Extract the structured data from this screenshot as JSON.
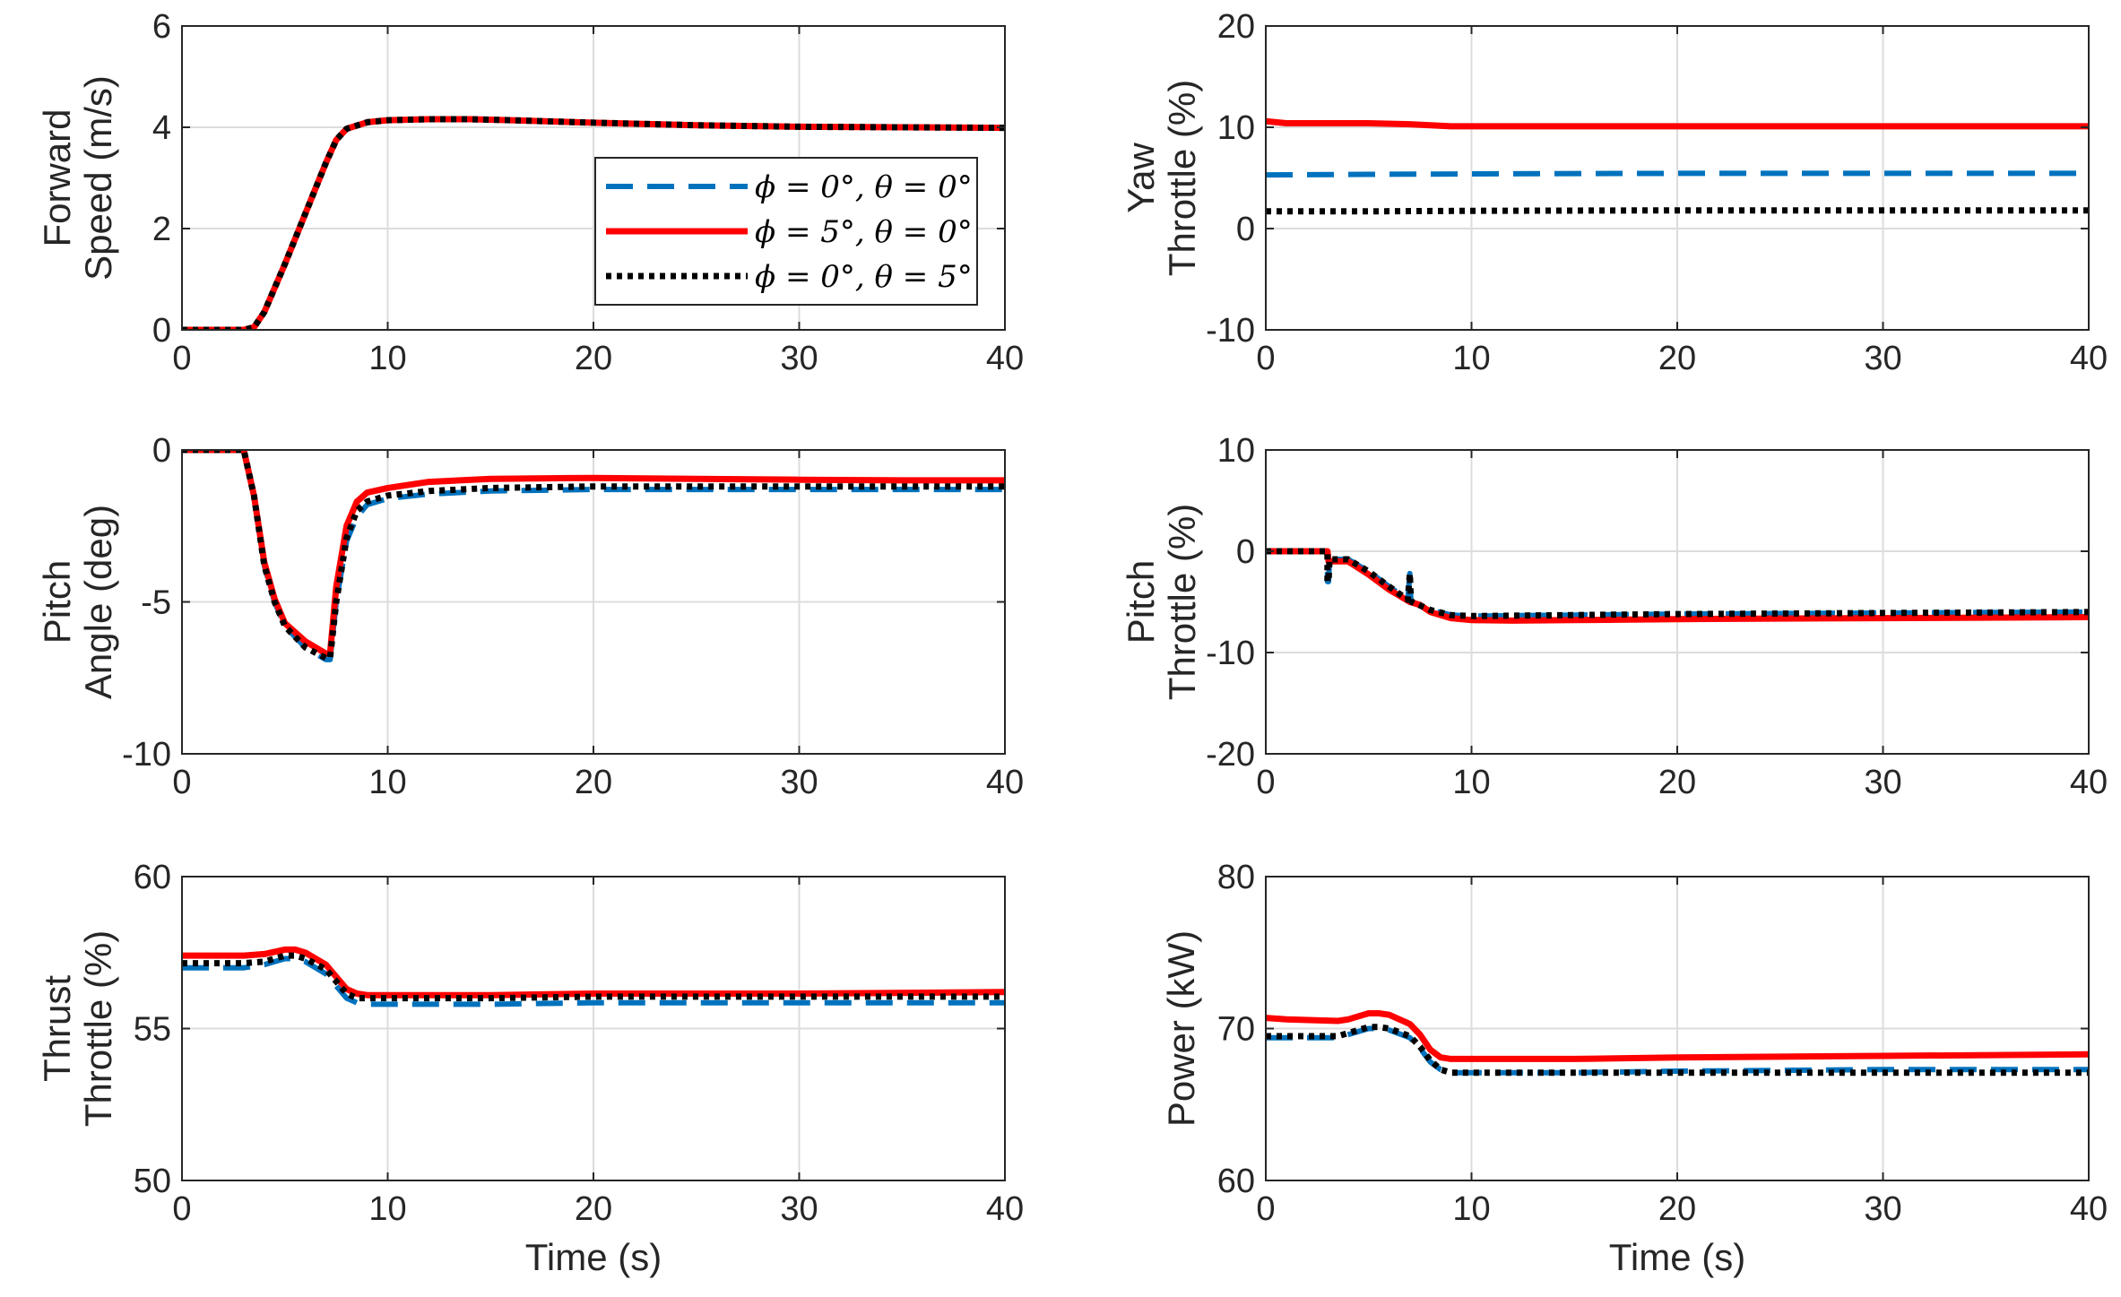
{
  "colors": {
    "series_a": "#0072BD",
    "series_b": "#FF0000",
    "series_c": "#000000",
    "grid": "#DCDCDC",
    "axis": "#262626"
  },
  "legend": {
    "entries": [
      "ϕ = 0°, θ = 0°",
      "ϕ = 5°, θ = 0°",
      "ϕ = 0°, θ = 5°"
    ]
  },
  "chart_data": [
    {
      "type": "line",
      "id": "forward-speed",
      "ylabel": [
        "Forward",
        "Speed (m/s)"
      ],
      "xlabel": "",
      "xlim": [
        0,
        40
      ],
      "ylim": [
        0,
        6
      ],
      "xticks": [
        0,
        10,
        20,
        30,
        40
      ],
      "yticks": [
        0,
        2,
        4,
        6
      ],
      "ytick_labels": [
        "0",
        "2",
        "4",
        "6"
      ],
      "grid": true,
      "legend_placement": "center-right",
      "series": [
        {
          "name": "ϕ = 0°, θ = 0°",
          "style": "dashed",
          "color": "#0072BD",
          "x": [
            0,
            3,
            3.5,
            4,
            5,
            6,
            7,
            7.5,
            8,
            9,
            10,
            12,
            14,
            16,
            20,
            25,
            30,
            35,
            40
          ],
          "y": [
            0,
            0,
            0.05,
            0.35,
            1.3,
            2.3,
            3.3,
            3.75,
            3.97,
            4.1,
            4.14,
            4.16,
            4.16,
            4.14,
            4.09,
            4.04,
            4.01,
            4.0,
            3.99
          ]
        },
        {
          "name": "ϕ = 5°, θ = 0°",
          "style": "solid",
          "color": "#FF0000",
          "x": [
            0,
            3,
            3.5,
            4,
            5,
            6,
            7,
            7.5,
            8,
            9,
            10,
            12,
            14,
            16,
            20,
            25,
            30,
            35,
            40
          ],
          "y": [
            0,
            0,
            0.05,
            0.35,
            1.3,
            2.3,
            3.3,
            3.75,
            3.97,
            4.1,
            4.14,
            4.16,
            4.16,
            4.14,
            4.09,
            4.04,
            4.01,
            4.0,
            3.99
          ]
        },
        {
          "name": "ϕ = 0°, θ = 5°",
          "style": "dotted",
          "color": "#000000",
          "x": [
            0,
            3,
            3.5,
            4,
            5,
            6,
            7,
            7.5,
            8,
            9,
            10,
            12,
            14,
            16,
            20,
            25,
            30,
            35,
            40
          ],
          "y": [
            0,
            0,
            0.05,
            0.35,
            1.3,
            2.3,
            3.3,
            3.75,
            3.97,
            4.1,
            4.14,
            4.16,
            4.16,
            4.14,
            4.09,
            4.04,
            4.01,
            4.0,
            3.99
          ]
        }
      ]
    },
    {
      "type": "line",
      "id": "yaw-throttle",
      "ylabel": [
        "Yaw",
        "Throttle (%)"
      ],
      "xlabel": "",
      "xlim": [
        0,
        40
      ],
      "ylim": [
        -10,
        20
      ],
      "xticks": [
        0,
        10,
        20,
        30,
        40
      ],
      "yticks": [
        -10,
        0,
        10,
        20
      ],
      "ytick_labels": [
        "-10",
        "0",
        "10",
        "20"
      ],
      "grid": true,
      "series": [
        {
          "name": "ϕ = 0°, θ = 0°",
          "style": "dashed",
          "color": "#0072BD",
          "x": [
            0,
            5,
            10,
            20,
            30,
            40
          ],
          "y": [
            5.3,
            5.35,
            5.4,
            5.45,
            5.45,
            5.45
          ]
        },
        {
          "name": "ϕ = 5°, θ = 0°",
          "style": "solid",
          "color": "#FF0000",
          "x": [
            0,
            1,
            5,
            7,
            9,
            10,
            20,
            30,
            40
          ],
          "y": [
            10.6,
            10.4,
            10.4,
            10.3,
            10.1,
            10.1,
            10.1,
            10.1,
            10.1
          ]
        },
        {
          "name": "ϕ = 0°, θ = 5°",
          "style": "dotted",
          "color": "#000000",
          "x": [
            0,
            5,
            10,
            20,
            30,
            40
          ],
          "y": [
            1.7,
            1.7,
            1.75,
            1.8,
            1.8,
            1.8
          ]
        }
      ]
    },
    {
      "type": "line",
      "id": "pitch-angle",
      "ylabel": [
        "Pitch",
        "Angle (deg)"
      ],
      "xlabel": "",
      "xlim": [
        0,
        40
      ],
      "ylim": [
        -10,
        0
      ],
      "xticks": [
        0,
        10,
        20,
        30,
        40
      ],
      "yticks": [
        -10,
        -5,
        0
      ],
      "ytick_labels": [
        "-10",
        "-5",
        "0"
      ],
      "grid": true,
      "series": [
        {
          "name": "ϕ = 0°, θ = 0°",
          "style": "dashed",
          "color": "#0072BD",
          "x": [
            0,
            3,
            3.5,
            4,
            4.5,
            5,
            6,
            7,
            7.2,
            7.5,
            8,
            8.5,
            9,
            10,
            12,
            15,
            20,
            25,
            30,
            35,
            40
          ],
          "y": [
            0,
            0,
            -1.5,
            -3.8,
            -5.0,
            -5.8,
            -6.5,
            -6.9,
            -6.9,
            -5.0,
            -3.0,
            -2.2,
            -1.8,
            -1.6,
            -1.45,
            -1.35,
            -1.3,
            -1.3,
            -1.3,
            -1.3,
            -1.3
          ]
        },
        {
          "name": "ϕ = 5°, θ = 0°",
          "style": "solid",
          "color": "#FF0000",
          "x": [
            0,
            3,
            3.5,
            4,
            4.5,
            5,
            6,
            7,
            7.2,
            7.5,
            8,
            8.5,
            9,
            10,
            12,
            15,
            20,
            25,
            30,
            35,
            40
          ],
          "y": [
            0,
            0,
            -1.5,
            -3.7,
            -4.9,
            -5.7,
            -6.3,
            -6.7,
            -6.7,
            -4.5,
            -2.5,
            -1.7,
            -1.4,
            -1.25,
            -1.05,
            -0.95,
            -0.92,
            -0.95,
            -0.98,
            -1.0,
            -1.0
          ]
        },
        {
          "name": "ϕ = 0°, θ = 5°",
          "style": "dotted",
          "color": "#000000",
          "x": [
            0,
            3,
            3.5,
            4,
            4.5,
            5,
            6,
            7,
            7.2,
            7.5,
            8,
            8.5,
            9,
            10,
            12,
            15,
            20,
            25,
            30,
            35,
            40
          ],
          "y": [
            0,
            0,
            -1.5,
            -3.8,
            -5.0,
            -5.8,
            -6.5,
            -6.85,
            -6.85,
            -5.0,
            -2.9,
            -2.0,
            -1.7,
            -1.5,
            -1.35,
            -1.25,
            -1.2,
            -1.2,
            -1.2,
            -1.2,
            -1.2
          ]
        }
      ]
    },
    {
      "type": "line",
      "id": "pitch-throttle",
      "ylabel": [
        "Pitch",
        "Throttle (%)"
      ],
      "xlabel": "",
      "xlim": [
        0,
        40
      ],
      "ylim": [
        -20,
        10
      ],
      "xticks": [
        0,
        10,
        20,
        30,
        40
      ],
      "yticks": [
        -20,
        -10,
        0,
        10
      ],
      "ytick_labels": [
        "-20",
        "-10",
        "0",
        "10"
      ],
      "grid": true,
      "series": [
        {
          "name": "ϕ = 0°, θ = 0°",
          "style": "dashed",
          "color": "#0072BD",
          "x": [
            0,
            3,
            3,
            3.05,
            3.1,
            4,
            5,
            6,
            6.9,
            7,
            7.05,
            7.1,
            8,
            9,
            10,
            15,
            20,
            30,
            40
          ],
          "y": [
            0,
            0,
            -3,
            -3,
            -0.8,
            -0.8,
            -2,
            -3.5,
            -4.8,
            -2.2,
            -4.8,
            -5.0,
            -5.8,
            -6.3,
            -6.4,
            -6.3,
            -6.2,
            -6.1,
            -6.0
          ]
        },
        {
          "name": "ϕ = 5°, θ = 0°",
          "style": "solid",
          "color": "#FF0000",
          "x": [
            0,
            3,
            3.05,
            3.1,
            4,
            5,
            6,
            7,
            7.5,
            8,
            9,
            10,
            12,
            15,
            20,
            30,
            40
          ],
          "y": [
            0,
            0,
            -1.0,
            -1.0,
            -1.0,
            -2.3,
            -3.8,
            -5.0,
            -5.3,
            -6.0,
            -6.6,
            -6.8,
            -6.85,
            -6.8,
            -6.7,
            -6.6,
            -6.5
          ]
        },
        {
          "name": "ϕ = 0°, θ = 5°",
          "style": "dotted",
          "color": "#000000",
          "x": [
            0,
            3,
            3,
            3.05,
            3.1,
            4,
            5,
            6,
            6.9,
            7,
            7.05,
            7.1,
            8,
            9,
            10,
            15,
            20,
            30,
            40
          ],
          "y": [
            0,
            0,
            -3,
            -3,
            -0.8,
            -0.8,
            -2,
            -3.5,
            -4.8,
            -2.2,
            -4.8,
            -5.0,
            -5.8,
            -6.3,
            -6.4,
            -6.3,
            -6.2,
            -6.1,
            -6.0
          ]
        }
      ]
    },
    {
      "type": "line",
      "id": "thrust-throttle",
      "ylabel": [
        "Thrust",
        "Throttle (%)"
      ],
      "xlabel": "Time (s)",
      "xlim": [
        0,
        40
      ],
      "ylim": [
        50,
        60
      ],
      "xticks": [
        0,
        10,
        20,
        30,
        40
      ],
      "yticks": [
        50,
        55,
        60
      ],
      "ytick_labels": [
        "50",
        "55",
        "60"
      ],
      "grid": true,
      "series": [
        {
          "name": "ϕ = 0°, θ = 0°",
          "style": "dashed",
          "color": "#0072BD",
          "x": [
            0,
            3,
            4,
            5,
            5.5,
            6,
            7,
            7.5,
            8,
            8.5,
            9,
            10,
            15,
            20,
            30,
            40
          ],
          "y": [
            57.0,
            57.0,
            57.1,
            57.3,
            57.3,
            57.2,
            56.8,
            56.4,
            56.0,
            55.85,
            55.8,
            55.8,
            55.8,
            55.85,
            55.85,
            55.85
          ]
        },
        {
          "name": "ϕ = 5°, θ = 0°",
          "style": "solid",
          "color": "#FF0000",
          "x": [
            0,
            3,
            4,
            5,
            5.5,
            6,
            7,
            7.5,
            8,
            8.5,
            9,
            10,
            15,
            20,
            30,
            40
          ],
          "y": [
            57.4,
            57.4,
            57.45,
            57.6,
            57.6,
            57.5,
            57.1,
            56.7,
            56.3,
            56.15,
            56.1,
            56.1,
            56.1,
            56.15,
            56.15,
            56.2
          ]
        },
        {
          "name": "ϕ = 0°, θ = 5°",
          "style": "dotted",
          "color": "#000000",
          "x": [
            0,
            3,
            4,
            5,
            5.5,
            6,
            7,
            7.5,
            8,
            8.5,
            9,
            10,
            15,
            20,
            30,
            40
          ],
          "y": [
            57.15,
            57.15,
            57.2,
            57.4,
            57.4,
            57.3,
            56.95,
            56.55,
            56.15,
            56.0,
            56.0,
            56.0,
            56.0,
            56.05,
            56.05,
            56.05
          ]
        }
      ]
    },
    {
      "type": "line",
      "id": "power",
      "ylabel": [
        "Power (kW)"
      ],
      "xlabel": "Time (s)",
      "xlim": [
        0,
        40
      ],
      "ylim": [
        60,
        80
      ],
      "xticks": [
        0,
        10,
        20,
        30,
        40
      ],
      "yticks": [
        60,
        70,
        80
      ],
      "ytick_labels": [
        "60",
        "70",
        "80"
      ],
      "grid": true,
      "series": [
        {
          "name": "ϕ = 0°, θ = 0°",
          "style": "dashed",
          "color": "#0072BD",
          "x": [
            0,
            3.5,
            4,
            5,
            5.5,
            6,
            7,
            7.5,
            8,
            8.5,
            9,
            10,
            15,
            20,
            30,
            40
          ],
          "y": [
            69.4,
            69.4,
            69.6,
            70.0,
            70.0,
            69.9,
            69.4,
            68.7,
            67.8,
            67.3,
            67.1,
            67.1,
            67.1,
            67.2,
            67.3,
            67.3
          ]
        },
        {
          "name": "ϕ = 5°, θ = 0°",
          "style": "solid",
          "color": "#FF0000",
          "x": [
            0,
            1,
            3.5,
            4,
            5,
            5.5,
            6,
            7,
            7.5,
            8,
            8.5,
            9,
            10,
            15,
            20,
            30,
            40
          ],
          "y": [
            70.7,
            70.6,
            70.5,
            70.6,
            71.0,
            71.0,
            70.9,
            70.3,
            69.6,
            68.6,
            68.1,
            68.0,
            68.0,
            68.0,
            68.1,
            68.2,
            68.3
          ]
        },
        {
          "name": "ϕ = 0°, θ = 5°",
          "style": "dotted",
          "color": "#000000",
          "x": [
            0,
            3.5,
            4,
            5,
            5.5,
            6,
            7,
            7.5,
            8,
            8.5,
            9,
            10,
            15,
            20,
            30,
            40
          ],
          "y": [
            69.5,
            69.5,
            69.7,
            70.1,
            70.1,
            70.0,
            69.5,
            68.8,
            67.9,
            67.3,
            67.1,
            67.1,
            67.1,
            67.1,
            67.1,
            67.1
          ]
        }
      ]
    }
  ]
}
